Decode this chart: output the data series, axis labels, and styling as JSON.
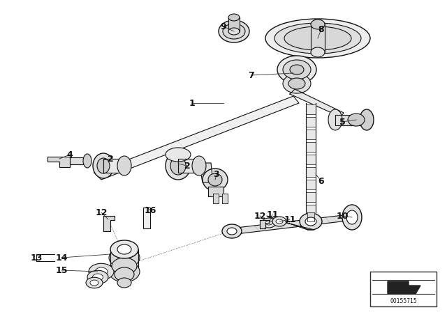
{
  "bg_color": "#ffffff",
  "dc": "#111111",
  "lc": "#111111",
  "watermark_num": "00155715",
  "figsize": [
    6.4,
    4.48
  ],
  "dpi": 100,
  "labels": [
    [
      "1",
      275,
      148
    ],
    [
      "2",
      158,
      228
    ],
    [
      "2",
      268,
      238
    ],
    [
      "3",
      310,
      250
    ],
    [
      "4",
      100,
      222
    ],
    [
      "5",
      490,
      175
    ],
    [
      "6",
      460,
      260
    ],
    [
      "7",
      360,
      108
    ],
    [
      "8",
      460,
      42
    ],
    [
      "9",
      320,
      38
    ],
    [
      "10",
      490,
      310
    ],
    [
      "11",
      390,
      308
    ],
    [
      "11",
      415,
      315
    ],
    [
      "12",
      145,
      305
    ],
    [
      "12",
      372,
      310
    ],
    [
      "13",
      52,
      370
    ],
    [
      "14",
      88,
      370
    ],
    [
      "15",
      88,
      388
    ],
    [
      "16",
      215,
      302
    ]
  ]
}
